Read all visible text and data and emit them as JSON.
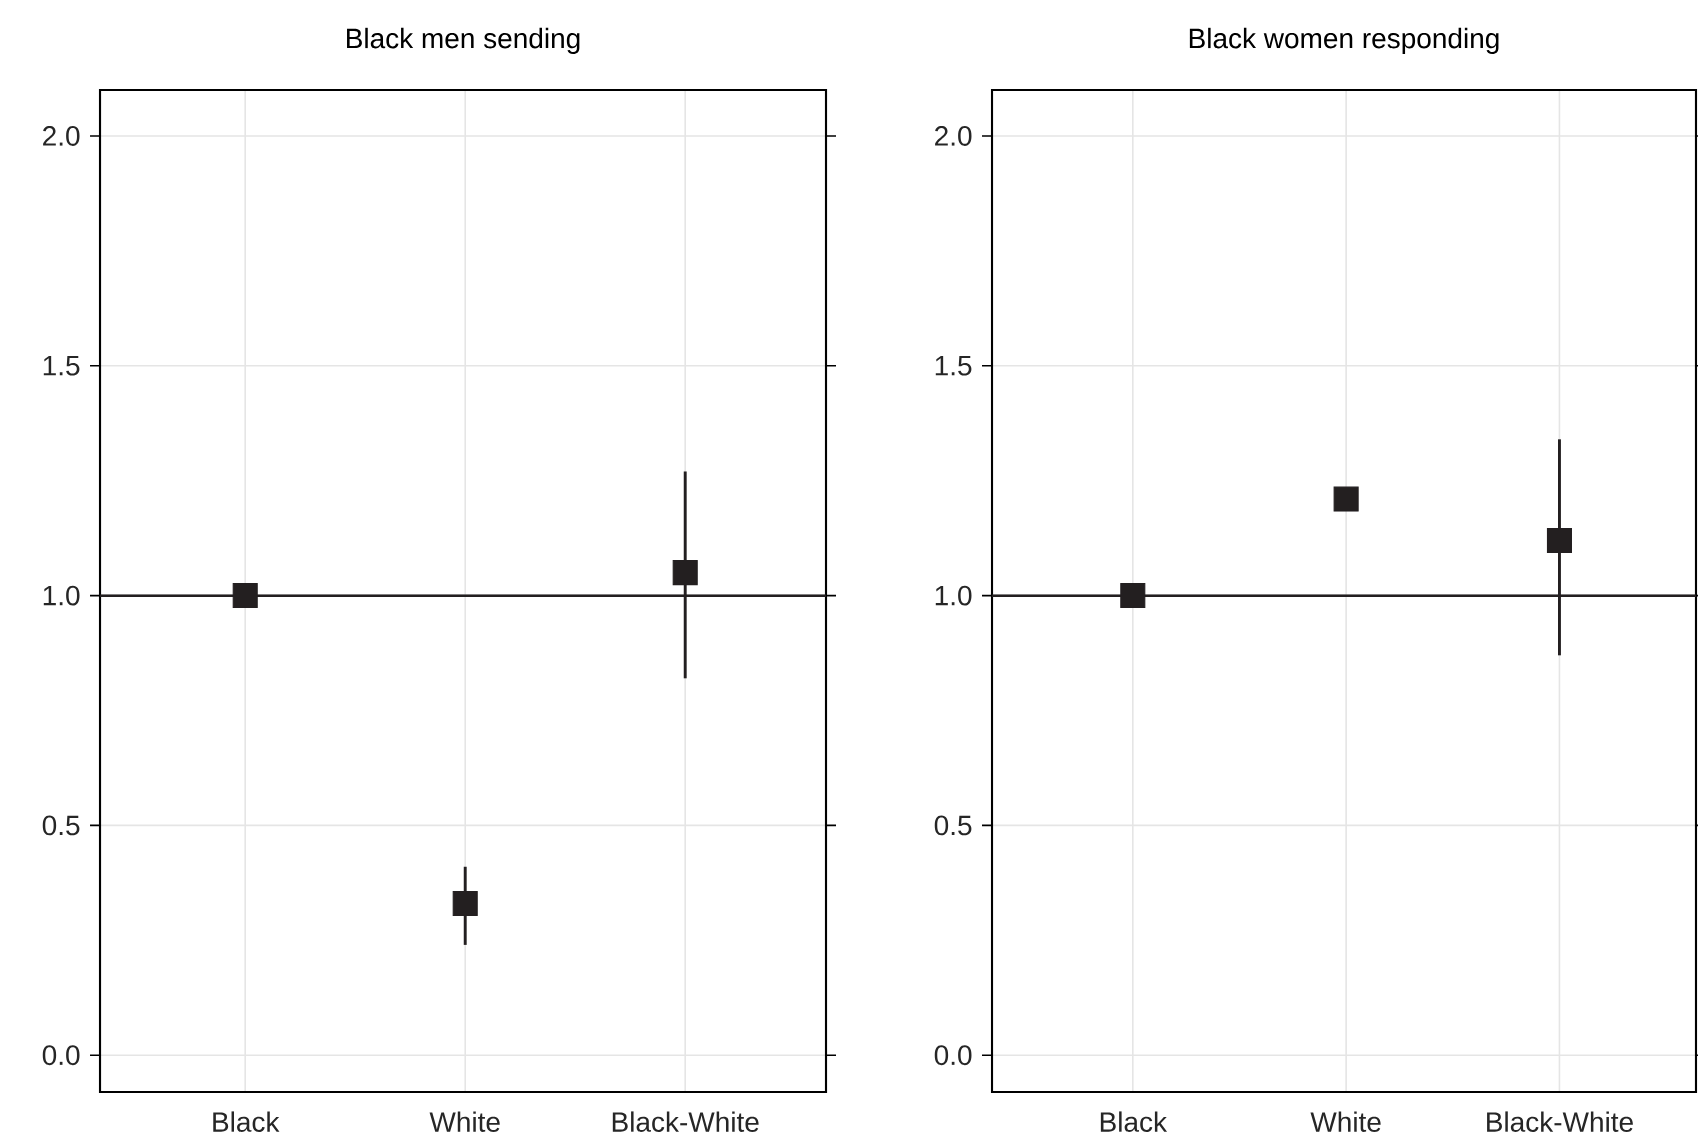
{
  "chart_data": [
    {
      "type": "scatter",
      "title": "Black men sending",
      "categories": [
        "Black",
        "White",
        "Black-White"
      ],
      "series": [
        {
          "color": "#231f20",
          "values": [
            1.0,
            0.33,
            1.05
          ],
          "errors": [
            null,
            [
              0.24,
              0.41
            ],
            [
              0.82,
              1.27
            ]
          ]
        }
      ],
      "ylim": [
        -0.08,
        2.1
      ],
      "yticks": [
        {
          "value": 0,
          "label": "0.0"
        },
        {
          "value": 0.5,
          "label": "0.5"
        },
        {
          "value": 1,
          "label": "1.0"
        },
        {
          "value": 1.5,
          "label": "1.5"
        },
        {
          "value": 2,
          "label": "2.0"
        }
      ],
      "ref_lines": [
        {
          "axis": "y",
          "value": 1,
          "color": "#231f20"
        }
      ],
      "grid": true,
      "marker": "square"
    },
    {
      "type": "scatter",
      "title": "Black women responding",
      "categories": [
        "Black",
        "White",
        "Black-White"
      ],
      "series": [
        {
          "color": "#231f20",
          "values": [
            1.0,
            1.21,
            1.12
          ],
          "errors": [
            null,
            [
              1.19,
              1.23
            ],
            [
              0.87,
              1.34
            ]
          ]
        }
      ],
      "ylim": [
        -0.08,
        2.1
      ],
      "yticks": [
        {
          "value": 0,
          "label": "0.0"
        },
        {
          "value": 0.5,
          "label": "0.5"
        },
        {
          "value": 1,
          "label": "1.0"
        },
        {
          "value": 1.5,
          "label": "1.5"
        },
        {
          "value": 2,
          "label": "2.0"
        }
      ],
      "ref_lines": [
        {
          "axis": "y",
          "value": 1,
          "color": "#231f20"
        }
      ],
      "grid": true,
      "marker": "square"
    }
  ]
}
